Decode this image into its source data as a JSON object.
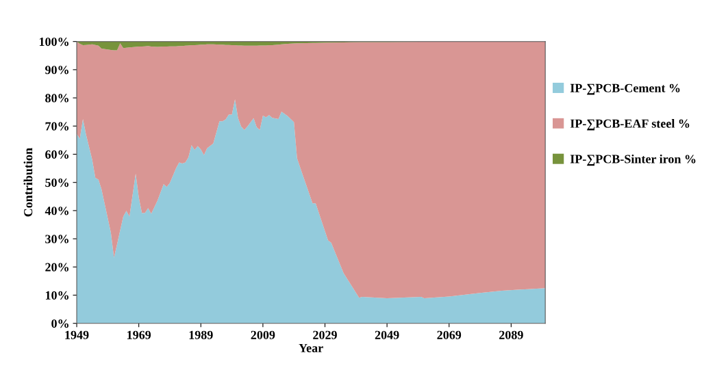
{
  "chart_data": {
    "type": "area",
    "stacked": true,
    "xlabel": "Year",
    "ylabel": "Contribution",
    "x": [
      1949,
      1950,
      1951,
      1952,
      1954,
      1955,
      1956,
      1957,
      1960,
      1961,
      1962,
      1963,
      1964,
      1965,
      1966,
      1968,
      1969,
      1970,
      1971,
      1972,
      1973,
      1975,
      1977,
      1978,
      1979,
      1981,
      1982,
      1983,
      1984,
      1985,
      1986,
      1987,
      1988,
      1989,
      1990,
      1991,
      1993,
      1995,
      1996,
      1997,
      1998,
      1999,
      2000,
      2001,
      2002,
      2003,
      2004,
      2006,
      2007,
      2008,
      2009,
      2010,
      2011,
      2012,
      2014,
      2015,
      2017,
      2019,
      2020,
      2021,
      2025,
      2026,
      2030,
      2031,
      2035,
      2040,
      2041,
      2049,
      2060,
      2061,
      2069,
      2079,
      2086,
      2100
    ],
    "series": [
      {
        "name": "IP-∑PCB-Cement %",
        "color": "#93cbdc",
        "values": [
          67.2,
          65.5,
          72.5,
          67,
          58,
          51.6,
          51,
          47.5,
          32.2,
          23.3,
          28,
          33,
          37.9,
          39.9,
          37.9,
          53.1,
          44.7,
          39.1,
          39.2,
          40.9,
          38.9,
          43.5,
          49.4,
          48.4,
          49.8,
          55,
          57.1,
          56.7,
          57.1,
          58.9,
          63.2,
          61.5,
          62.9,
          61.7,
          59.7,
          62.1,
          63.8,
          71.7,
          71.7,
          72.4,
          74.1,
          74.1,
          79.5,
          72.8,
          69.8,
          68.6,
          69.8,
          72.8,
          69.6,
          68.6,
          73.7,
          73.1,
          73.9,
          72.9,
          72.5,
          75.1,
          73.5,
          71.4,
          58.6,
          55.3,
          42.6,
          42.6,
          29.4,
          28.6,
          17.8,
          9.1,
          9.4,
          8.9,
          9.4,
          8.9,
          9.5,
          10.8,
          11.6,
          12.5
        ]
      },
      {
        "name": "IP-∑PCB-EAF steel %",
        "color": "#d99694",
        "values": [
          32.8,
          33.7,
          26.2,
          31.8,
          41,
          47.2,
          47.5,
          50,
          64.8,
          73.6,
          68.9,
          66.4,
          59.8,
          57.9,
          60,
          45,
          53.5,
          59.1,
          59.1,
          57.5,
          59.3,
          54.6,
          48.8,
          49.8,
          48.5,
          43.3,
          41.3,
          41.7,
          41.4,
          39.7,
          35.5,
          37.2,
          35.9,
          37.2,
          39.2,
          36.9,
          35.2,
          27.2,
          27.2,
          26.4,
          24.7,
          24.6,
          19.2,
          25.8,
          28.8,
          29.9,
          28.7,
          25.7,
          28.9,
          30,
          24.9,
          25.5,
          24.8,
          25.8,
          26.4,
          23.9,
          25.7,
          27.9,
          40.8,
          44.1,
          56.9,
          56.9,
          70.2,
          71,
          81.9,
          90.7,
          90.4,
          90.9,
          90.5,
          91,
          90.4,
          89.1,
          88.3,
          87.4
        ]
      },
      {
        "name": "IP-∑PCB-Sinter iron %",
        "color": "#77933c",
        "values": [
          0,
          0.8,
          1.3,
          1.2,
          1.0,
          1.2,
          1.5,
          2.5,
          3.0,
          3.1,
          3.1,
          0.6,
          2.3,
          2.2,
          2.1,
          1.9,
          1.8,
          1.8,
          1.7,
          1.6,
          1.8,
          1.9,
          1.8,
          1.8,
          1.7,
          1.7,
          1.6,
          1.6,
          1.5,
          1.4,
          1.3,
          1.3,
          1.2,
          1.1,
          1.1,
          1.0,
          1.0,
          1.1,
          1.1,
          1.2,
          1.2,
          1.3,
          1.3,
          1.4,
          1.4,
          1.5,
          1.5,
          1.5,
          1.5,
          1.4,
          1.4,
          1.4,
          1.3,
          1.3,
          1.1,
          1.0,
          0.8,
          0.7,
          0.6,
          0.6,
          0.5,
          0.5,
          0.4,
          0.4,
          0.3,
          0.2,
          0.2,
          0.2,
          0.1,
          0.1,
          0.1,
          0.1,
          0.1,
          0.1
        ]
      }
    ],
    "xlim": [
      1949,
      2100
    ],
    "xticks": [
      1949,
      1969,
      1989,
      2009,
      2029,
      2049,
      2069,
      2089
    ],
    "ylim": [
      0,
      100
    ],
    "yticks": [
      {
        "value": 0,
        "label": "0%"
      },
      {
        "value": 10,
        "label": "10%"
      },
      {
        "value": 20,
        "label": "20%"
      },
      {
        "value": 30,
        "label": "30%"
      },
      {
        "value": 40,
        "label": "40%"
      },
      {
        "value": 50,
        "label": "50%"
      },
      {
        "value": 60,
        "label": "60%"
      },
      {
        "value": 70,
        "label": "70%"
      },
      {
        "value": 80,
        "label": "80%"
      },
      {
        "value": 90,
        "label": "90%"
      },
      {
        "value": 100,
        "label": "100%"
      }
    ],
    "grid": false,
    "legend": "right"
  }
}
